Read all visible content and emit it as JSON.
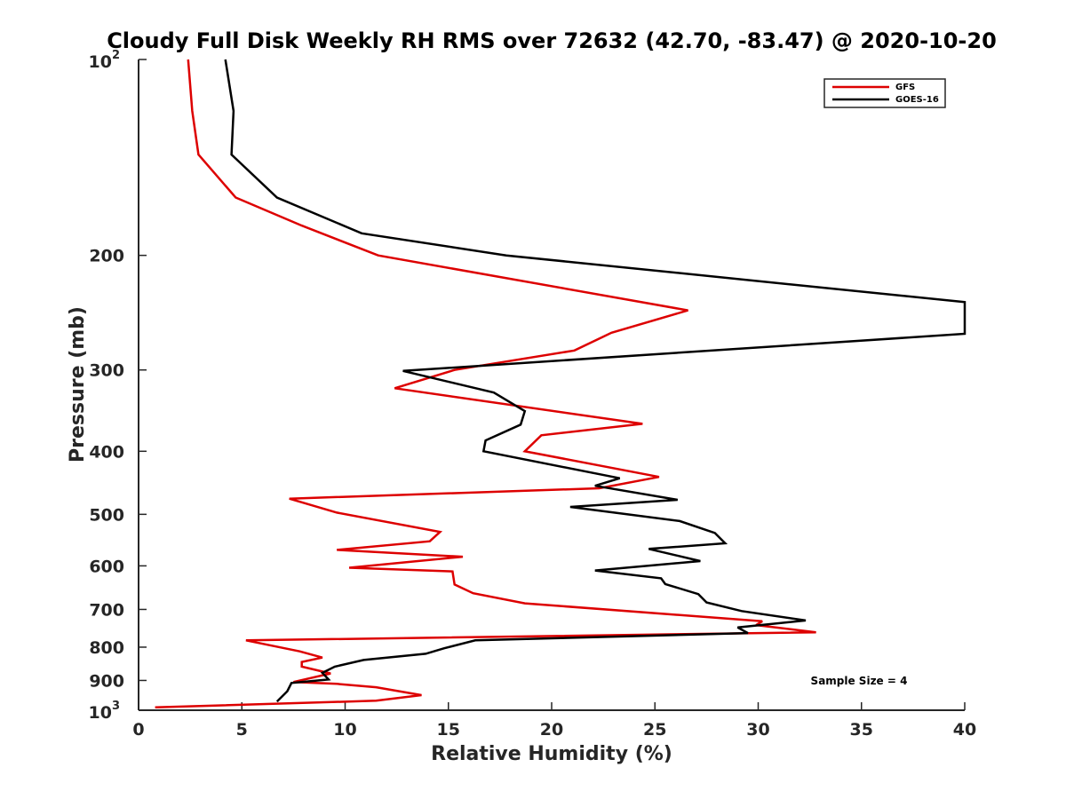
{
  "chart_data": {
    "type": "line",
    "title": "Cloudy Full Disk Weekly RH RMS over 72632 (42.70, -83.47) @ 2020-10-20",
    "xlabel": "Relative Humidity (%)",
    "ylabel": "Pressure (mb)",
    "xlim": [
      0,
      40
    ],
    "ylim": [
      100,
      1000
    ],
    "yscale": "log",
    "yreversed": true,
    "grid": false,
    "legend_position": "top-right",
    "x_ticks": [
      0,
      5,
      10,
      15,
      20,
      25,
      30,
      35,
      40
    ],
    "x_tick_labels": [
      "0",
      "5",
      "10",
      "15",
      "20",
      "25",
      "30",
      "35",
      "40"
    ],
    "y_ticks": [
      {
        "value": 100,
        "base": "10",
        "exp": "2"
      },
      {
        "value": 200,
        "label": "200"
      },
      {
        "value": 300,
        "label": "300"
      },
      {
        "value": 400,
        "label": "400"
      },
      {
        "value": 500,
        "label": "500"
      },
      {
        "value": 600,
        "label": "600"
      },
      {
        "value": 700,
        "label": "700"
      },
      {
        "value": 800,
        "label": "800"
      },
      {
        "value": 900,
        "label": "900"
      },
      {
        "value": 1000,
        "base": "10",
        "exp": "3"
      }
    ],
    "annotation": "Sample Size = 4",
    "series": [
      {
        "name": "GFS",
        "color": "#dd0000",
        "points": [
          [
            2.4,
            100
          ],
          [
            2.6,
            120
          ],
          [
            2.9,
            140
          ],
          [
            4.7,
            163
          ],
          [
            7.9,
            180
          ],
          [
            11.6,
            200
          ],
          [
            26.6,
            243
          ],
          [
            22.9,
            263
          ],
          [
            21.1,
            280
          ],
          [
            15.3,
            300
          ],
          [
            12.4,
            320
          ],
          [
            24.4,
            363
          ],
          [
            19.5,
            378
          ],
          [
            18.7,
            400
          ],
          [
            25.2,
            438
          ],
          [
            22.3,
            456
          ],
          [
            7.3,
            473
          ],
          [
            9.6,
            497
          ],
          [
            14.6,
            532
          ],
          [
            14.1,
            550
          ],
          [
            9.6,
            567
          ],
          [
            15.7,
            581
          ],
          [
            10.2,
            604
          ],
          [
            15.2,
            612
          ],
          [
            15.3,
            641
          ],
          [
            16.2,
            661
          ],
          [
            18.7,
            685
          ],
          [
            30.2,
            730
          ],
          [
            29.9,
            740
          ],
          [
            32.8,
            759
          ],
          [
            5.2,
            781
          ],
          [
            7.8,
            812
          ],
          [
            8.9,
            830
          ],
          [
            7.9,
            843
          ],
          [
            7.9,
            857
          ],
          [
            9.3,
            878
          ],
          [
            7.5,
            905
          ],
          [
            9.6,
            911
          ],
          [
            11.5,
            922
          ],
          [
            13.7,
            948
          ],
          [
            11.5,
            967
          ],
          [
            0.8,
            990
          ]
        ]
      },
      {
        "name": "GOES-16",
        "color": "#000000",
        "points": [
          [
            4.2,
            100
          ],
          [
            4.6,
            120
          ],
          [
            4.5,
            140
          ],
          [
            6.7,
            163
          ],
          [
            10.8,
            185
          ],
          [
            17.8,
            200
          ],
          [
            40.0,
            236
          ],
          [
            40.0,
            264
          ],
          [
            12.8,
            301
          ],
          [
            17.2,
            325
          ],
          [
            18.7,
            347
          ],
          [
            18.5,
            364
          ],
          [
            16.8,
            385
          ],
          [
            16.7,
            400
          ],
          [
            23.3,
            440
          ],
          [
            22.1,
            452
          ],
          [
            26.1,
            475
          ],
          [
            20.9,
            487
          ],
          [
            26.2,
            512
          ],
          [
            27.9,
            534
          ],
          [
            28.4,
            554
          ],
          [
            24.7,
            565
          ],
          [
            27.2,
            590
          ],
          [
            22.1,
            610
          ],
          [
            25.3,
            627
          ],
          [
            25.5,
            640
          ],
          [
            27.1,
            663
          ],
          [
            27.5,
            683
          ],
          [
            29.2,
            704
          ],
          [
            32.3,
            728
          ],
          [
            29.0,
            746
          ],
          [
            29.5,
            761
          ],
          [
            16.3,
            781
          ],
          [
            14.8,
            803
          ],
          [
            13.9,
            819
          ],
          [
            10.9,
            837
          ],
          [
            9.5,
            857
          ],
          [
            8.9,
            876
          ],
          [
            9.2,
            897
          ],
          [
            7.4,
            908
          ],
          [
            7.2,
            935
          ],
          [
            6.7,
            970
          ]
        ]
      }
    ]
  }
}
